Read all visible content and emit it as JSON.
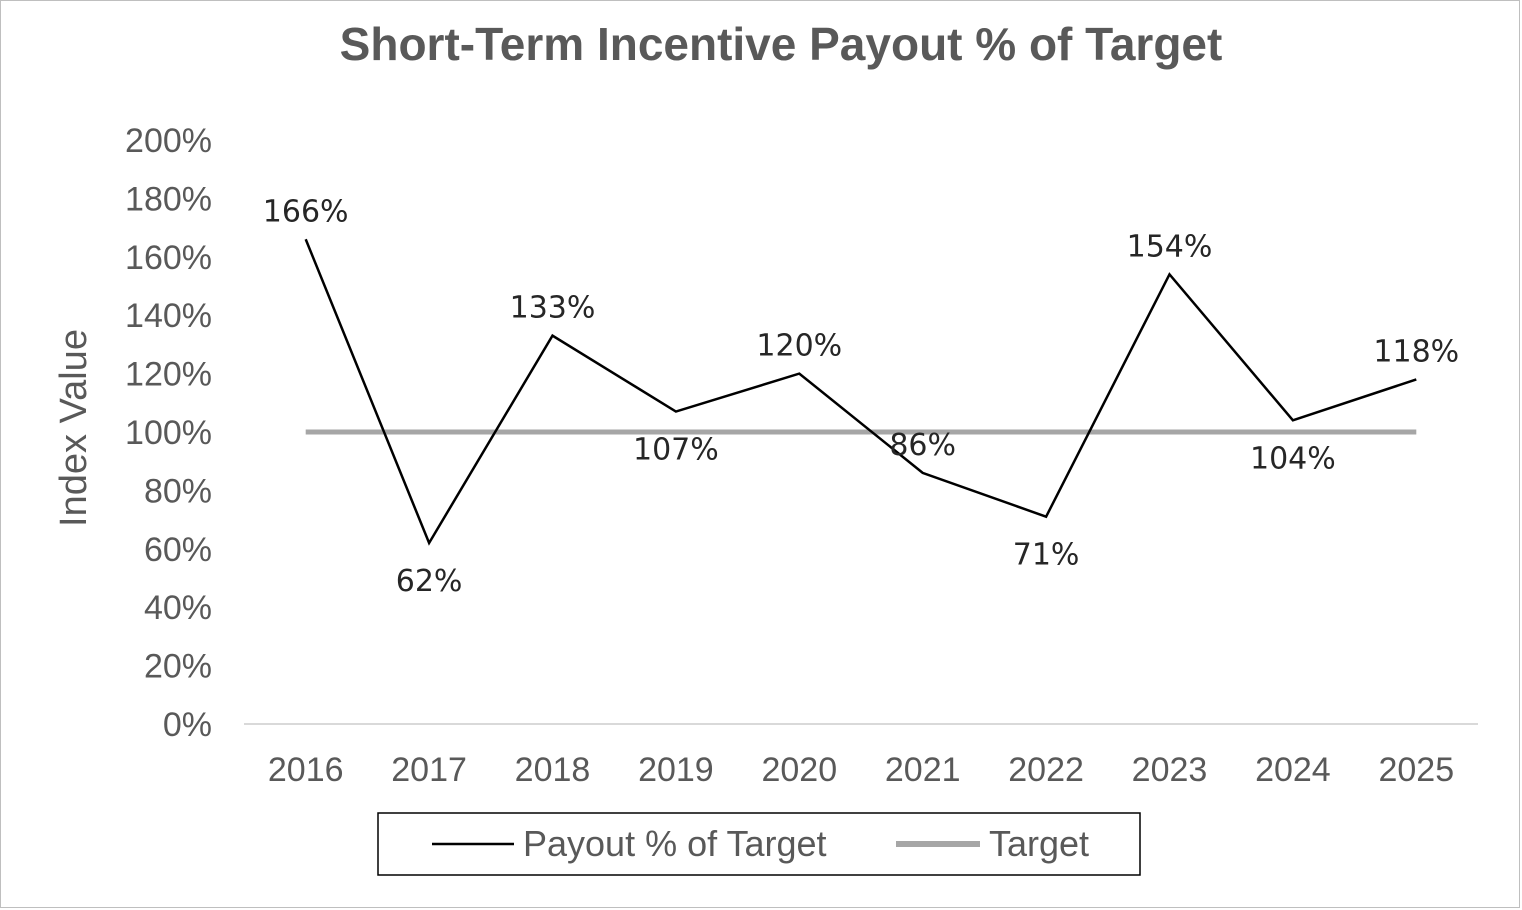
{
  "chart_data": {
    "type": "line",
    "title": "Short-Term Incentive Payout % of Target",
    "xlabel": "",
    "ylabel": "Index Value",
    "categories": [
      "2016",
      "2017",
      "2018",
      "2019",
      "2020",
      "2021",
      "2022",
      "2023",
      "2024",
      "2025"
    ],
    "ylim": [
      0,
      200
    ],
    "yticks": [
      "0%",
      "20%",
      "40%",
      "60%",
      "80%",
      "100%",
      "120%",
      "140%",
      "160%",
      "180%",
      "200%"
    ],
    "grid": false,
    "legend_position": "bottom",
    "series": [
      {
        "name": "Payout % of Target",
        "color": "#000000",
        "values": [
          166,
          62,
          133,
          107,
          120,
          86,
          71,
          154,
          104,
          118
        ],
        "labels": [
          "166%",
          "62%",
          "133%",
          "107%",
          "120%",
          "86%",
          "71%",
          "154%",
          "104%",
          "118%"
        ]
      },
      {
        "name": "Target",
        "color": "#a6a6a6",
        "values": [
          100,
          100,
          100,
          100,
          100,
          100,
          100,
          100,
          100,
          100
        ]
      }
    ]
  }
}
